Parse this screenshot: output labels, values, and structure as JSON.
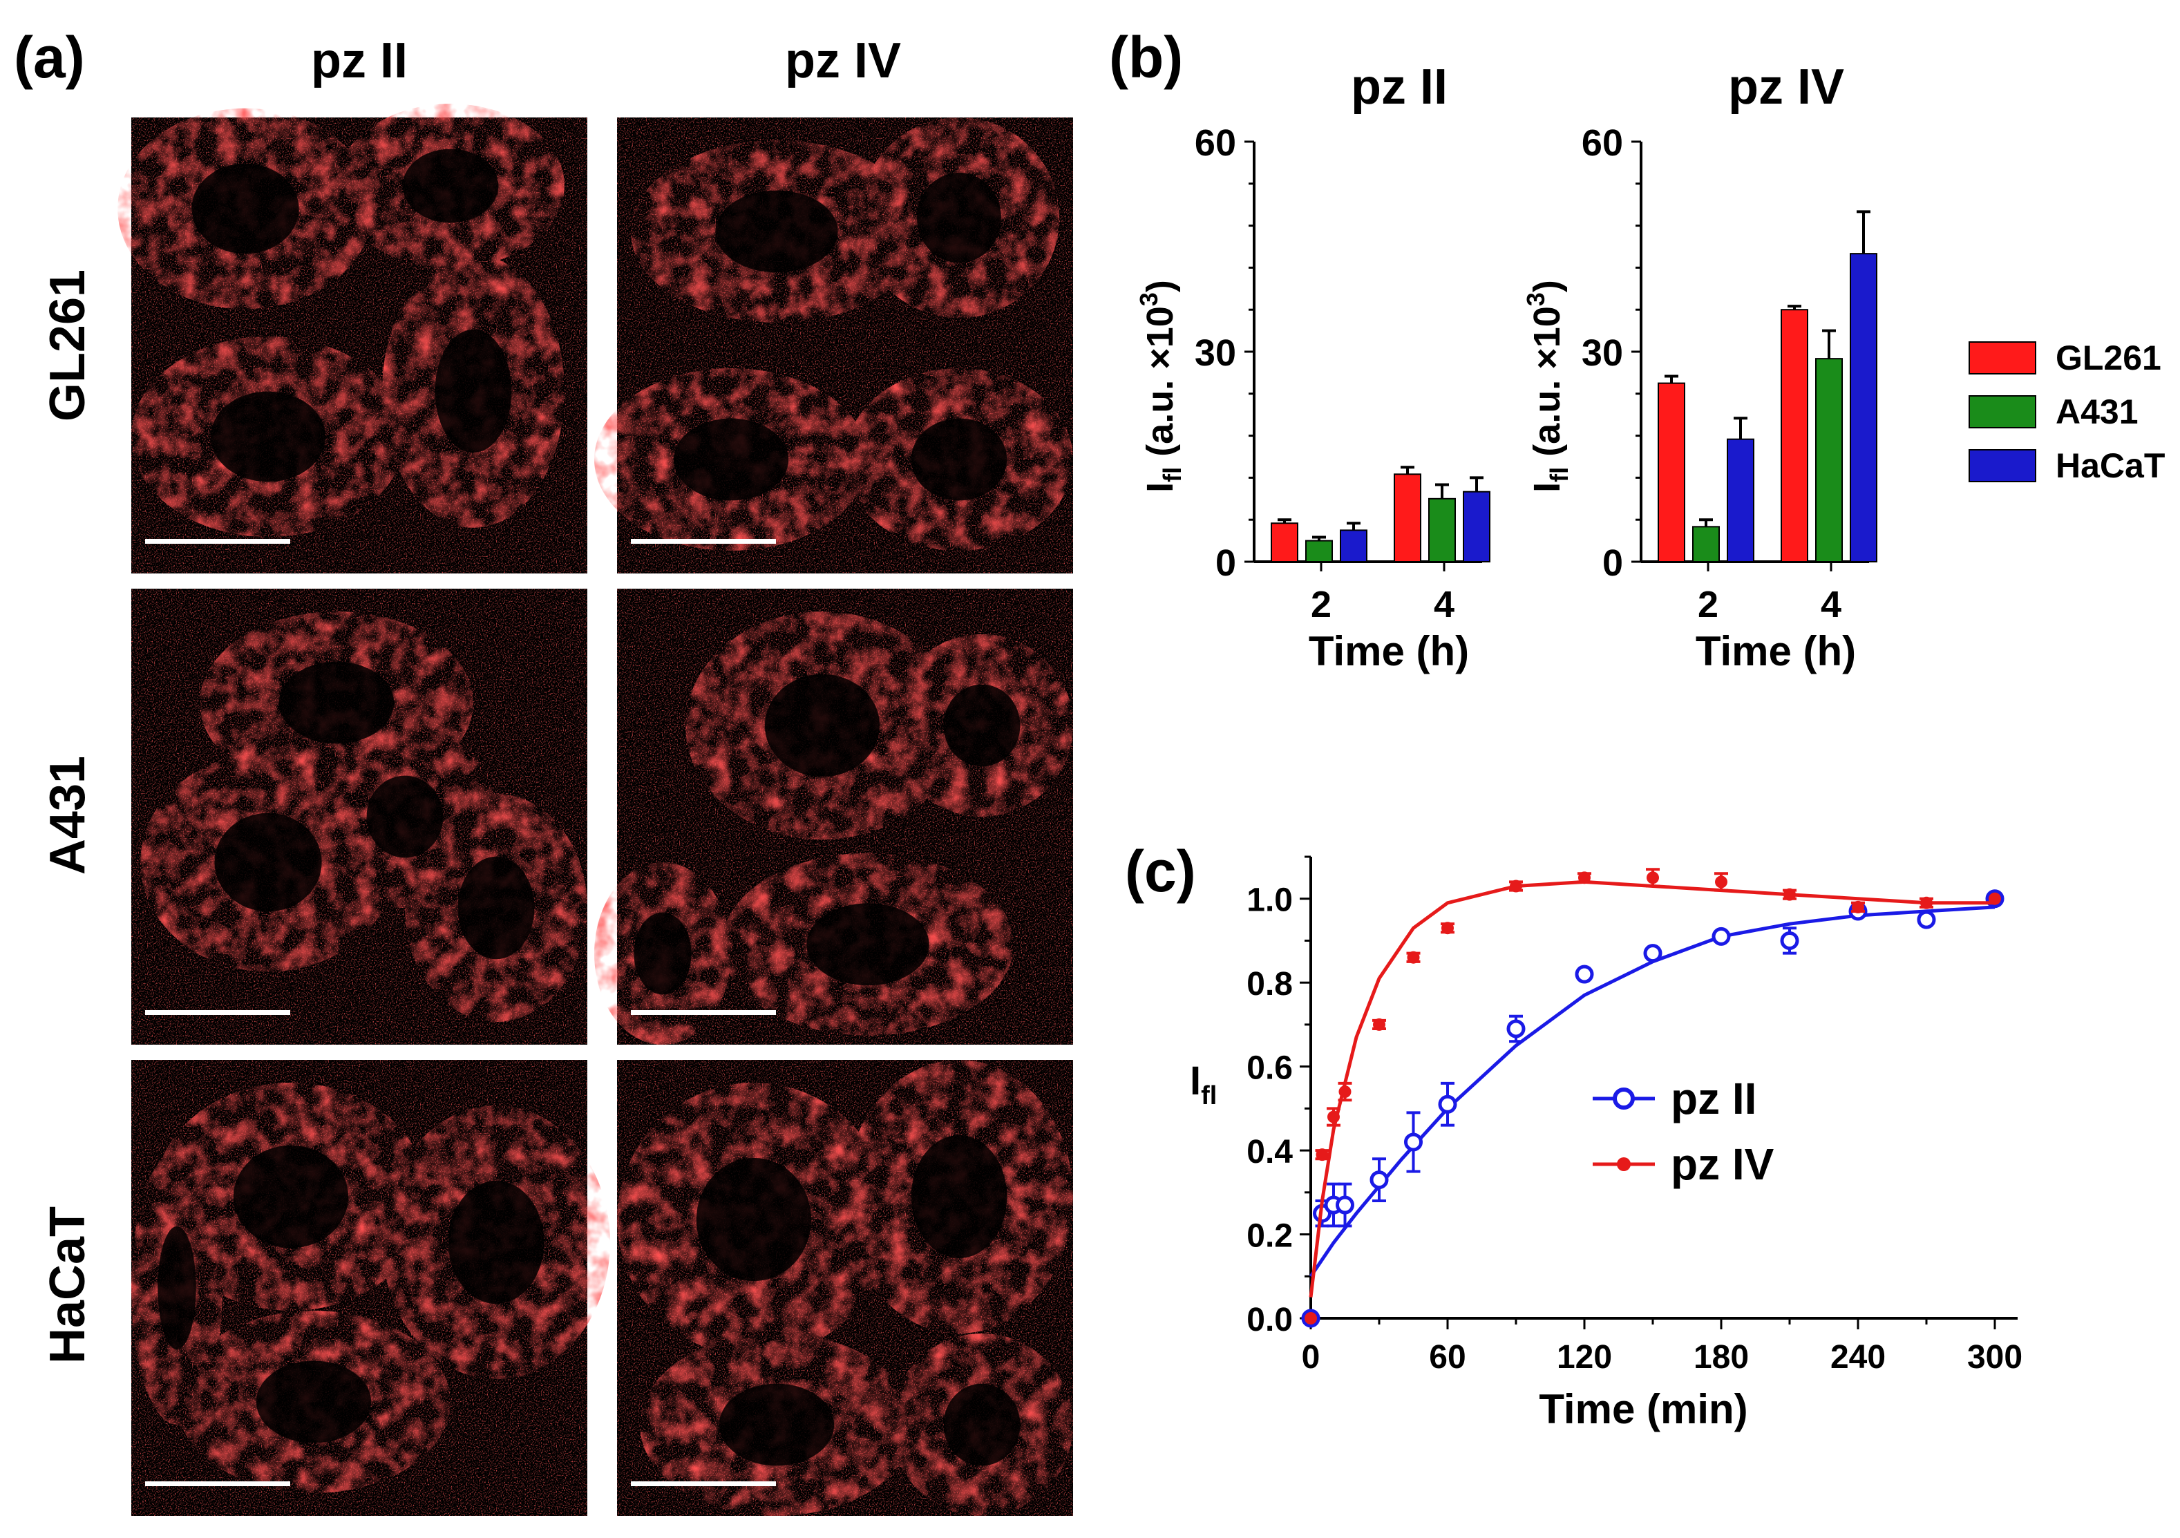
{
  "panel_labels": {
    "a": "(a)",
    "b": "(b)",
    "c": "(c)"
  },
  "microscopy": {
    "columns": [
      "pz II",
      "pz IV"
    ],
    "rows": [
      "GL261",
      "A431",
      "HaCaT"
    ],
    "fluorescence_color": "#ff1a1a"
  },
  "chart_data": [
    {
      "type": "bar",
      "title": "pz II",
      "xlabel": "Time (h)",
      "ylabel": "I",
      "ylabel_sub": "fl",
      "ylabel_unit": "(a.u. ×10",
      "ylabel_sup": "3",
      "categories": [
        "2",
        "4"
      ],
      "ylim": [
        0,
        60
      ],
      "yticks": [
        "0",
        "30",
        "60"
      ],
      "series": [
        {
          "name": "GL261",
          "color": "#ff1a1a",
          "values": [
            5.5,
            12.5
          ],
          "errors": [
            0.5,
            1.0
          ]
        },
        {
          "name": "A431",
          "color": "#1a8c1a",
          "values": [
            3.0,
            9.0
          ],
          "errors": [
            0.5,
            2.0
          ]
        },
        {
          "name": "HaCaT",
          "color": "#1a1acc",
          "values": [
            4.5,
            10.0
          ],
          "errors": [
            1.0,
            2.0
          ]
        }
      ]
    },
    {
      "type": "bar",
      "title": "pz IV",
      "xlabel": "Time (h)",
      "ylabel": "I",
      "ylabel_sub": "fl",
      "ylabel_unit": "(a.u. ×10",
      "ylabel_sup": "3",
      "categories": [
        "2",
        "4"
      ],
      "ylim": [
        0,
        60
      ],
      "yticks": [
        "0",
        "30",
        "60"
      ],
      "series": [
        {
          "name": "GL261",
          "color": "#ff1a1a",
          "values": [
            25.5,
            36.0
          ],
          "errors": [
            1.0,
            0.5
          ]
        },
        {
          "name": "A431",
          "color": "#1a8c1a",
          "values": [
            5.0,
            29.0
          ],
          "errors": [
            1.0,
            4.0
          ]
        },
        {
          "name": "HaCaT",
          "color": "#1a1acc",
          "values": [
            17.5,
            44.0
          ],
          "errors": [
            3.0,
            6.0
          ]
        }
      ]
    },
    {
      "type": "scatter",
      "xlabel": "Time (min)",
      "ylabel": "I",
      "ylabel_sub": "fl",
      "xlim": [
        0,
        310
      ],
      "ylim": [
        0,
        1.1
      ],
      "xticks": [
        "0",
        "60",
        "120",
        "180",
        "240",
        "300"
      ],
      "yticks": [
        "0.0",
        "0.2",
        "0.4",
        "0.6",
        "0.8",
        "1.0"
      ],
      "series": [
        {
          "name": "pz II",
          "color": "#1a1ae6",
          "marker": "open-circle",
          "x": [
            0,
            5,
            10,
            15,
            30,
            45,
            60,
            90,
            120,
            150,
            180,
            210,
            240,
            270,
            300
          ],
          "y": [
            0.0,
            0.25,
            0.27,
            0.27,
            0.33,
            0.42,
            0.51,
            0.69,
            0.82,
            0.87,
            0.91,
            0.9,
            0.97,
            0.95,
            1.0
          ],
          "errors": [
            0.0,
            0.03,
            0.05,
            0.05,
            0.05,
            0.07,
            0.05,
            0.03,
            0.01,
            0.01,
            0.01,
            0.03,
            0.01,
            0.01,
            0.0
          ],
          "fit_x": [
            0,
            10,
            20,
            40,
            60,
            90,
            120,
            150,
            180,
            210,
            240,
            270,
            300
          ],
          "fit_y": [
            0.1,
            0.18,
            0.25,
            0.38,
            0.5,
            0.65,
            0.77,
            0.85,
            0.91,
            0.94,
            0.96,
            0.97,
            0.98
          ]
        },
        {
          "name": "pz IV",
          "color": "#e61a1a",
          "marker": "filled-circle",
          "x": [
            0,
            5,
            10,
            15,
            30,
            45,
            60,
            90,
            120,
            150,
            180,
            210,
            240,
            270,
            300
          ],
          "y": [
            0.0,
            0.39,
            0.48,
            0.54,
            0.7,
            0.86,
            0.93,
            1.03,
            1.05,
            1.05,
            1.04,
            1.01,
            0.98,
            0.99,
            1.0
          ],
          "errors": [
            0.0,
            0.01,
            0.02,
            0.02,
            0.01,
            0.01,
            0.01,
            0.01,
            0.01,
            0.02,
            0.02,
            0.01,
            0.01,
            0.01,
            0.0
          ],
          "fit_x": [
            0,
            5,
            10,
            20,
            30,
            45,
            60,
            90,
            120,
            150,
            180,
            210,
            240,
            270,
            300
          ],
          "fit_y": [
            0.05,
            0.28,
            0.45,
            0.67,
            0.81,
            0.93,
            0.99,
            1.03,
            1.04,
            1.03,
            1.02,
            1.01,
            1.0,
            0.99,
            0.99
          ]
        }
      ]
    }
  ]
}
